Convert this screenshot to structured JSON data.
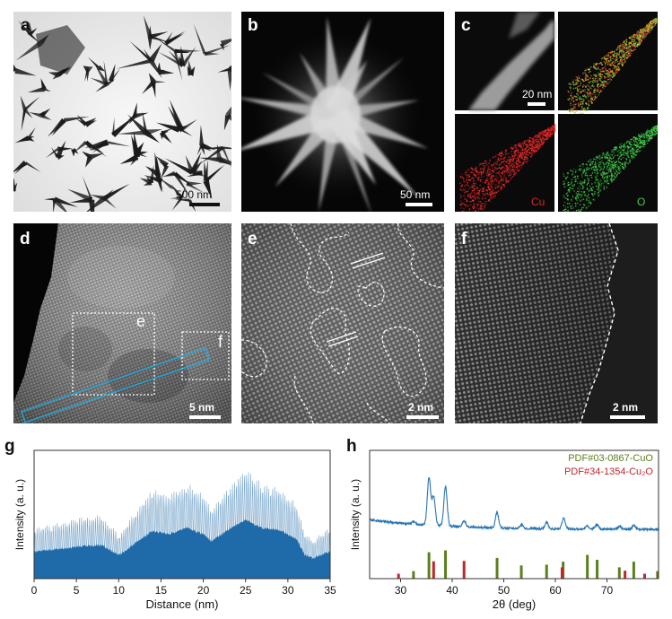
{
  "panels": {
    "a": {
      "label": "a",
      "scale": "500 nm"
    },
    "b": {
      "label": "b",
      "scale": "50 nm"
    },
    "c": {
      "label": "c",
      "scale": "20 nm",
      "map_cu": "Cu",
      "map_o": "O"
    },
    "d": {
      "label": "d",
      "scale": "5 nm",
      "box_e": "e",
      "box_f": "f"
    },
    "e": {
      "label": "e",
      "scale": "2 nm"
    },
    "f": {
      "label": "f",
      "scale": "2 nm"
    },
    "g": {
      "label": "g"
    },
    "h": {
      "label": "h"
    }
  },
  "colors": {
    "line_profile": "#1f6aa8",
    "xrd": "#2874b0",
    "cuo": "#5b7f1d",
    "cu2o": "#c0262c",
    "cu_map": "#d51f1f",
    "o_map": "#33c63a",
    "roi_box": "#1ea9e0"
  },
  "chart_data": [
    {
      "type": "area",
      "panel": "g",
      "xlabel": "Distance (nm)",
      "ylabel": "Intensity (a. u.)",
      "xlim": [
        0,
        35
      ],
      "xticks": [
        0,
        5,
        10,
        15,
        20,
        25,
        30,
        35
      ],
      "x": [
        0,
        2,
        4,
        6,
        8,
        9,
        10,
        12,
        14,
        16,
        18,
        20,
        21,
        23,
        25,
        27,
        29,
        31,
        32,
        33,
        35
      ],
      "envelope": [
        0.34,
        0.36,
        0.39,
        0.41,
        0.42,
        0.36,
        0.29,
        0.45,
        0.6,
        0.56,
        0.64,
        0.56,
        0.47,
        0.62,
        0.74,
        0.63,
        0.61,
        0.5,
        0.3,
        0.26,
        0.34
      ],
      "grid": false
    },
    {
      "type": "line",
      "panel": "h",
      "xlabel": "2θ (deg)",
      "ylabel": "Intensity (a. u.)",
      "xlim": [
        24,
        80
      ],
      "xticks": [
        30,
        40,
        50,
        60,
        70
      ],
      "legend": [
        {
          "name": "PDF#03-0867-CuO",
          "color": "#5b7f1d"
        },
        {
          "name": "PDF#34-1354-Cu₂O",
          "color": "#c0262c"
        }
      ],
      "legend_position": "top-right",
      "pattern_peaks": [
        {
          "x": 32.5,
          "h": 0.04
        },
        {
          "x": 35.5,
          "h": 0.62
        },
        {
          "x": 36.4,
          "h": 0.38
        },
        {
          "x": 38.7,
          "h": 0.52
        },
        {
          "x": 42.3,
          "h": 0.08
        },
        {
          "x": 48.7,
          "h": 0.2
        },
        {
          "x": 53.5,
          "h": 0.05
        },
        {
          "x": 58.3,
          "h": 0.08
        },
        {
          "x": 61.6,
          "h": 0.14
        },
        {
          "x": 66.2,
          "h": 0.05
        },
        {
          "x": 68.0,
          "h": 0.06
        },
        {
          "x": 72.4,
          "h": 0.04
        },
        {
          "x": 75.2,
          "h": 0.05
        }
      ],
      "reference_cuo": [
        {
          "x": 32.5,
          "h": 0.2
        },
        {
          "x": 35.5,
          "h": 0.7
        },
        {
          "x": 38.7,
          "h": 0.75
        },
        {
          "x": 48.7,
          "h": 0.55
        },
        {
          "x": 53.4,
          "h": 0.35
        },
        {
          "x": 58.3,
          "h": 0.37
        },
        {
          "x": 61.5,
          "h": 0.45
        },
        {
          "x": 66.2,
          "h": 0.63
        },
        {
          "x": 68.1,
          "h": 0.5
        },
        {
          "x": 72.4,
          "h": 0.3
        },
        {
          "x": 75.2,
          "h": 0.45
        },
        {
          "x": 79.8,
          "h": 0.2
        }
      ],
      "reference_cu2o": [
        {
          "x": 29.6,
          "h": 0.13
        },
        {
          "x": 36.4,
          "h": 0.46
        },
        {
          "x": 42.3,
          "h": 0.47
        },
        {
          "x": 61.3,
          "h": 0.3
        },
        {
          "x": 73.5,
          "h": 0.21
        },
        {
          "x": 77.3,
          "h": 0.13
        }
      ]
    }
  ]
}
